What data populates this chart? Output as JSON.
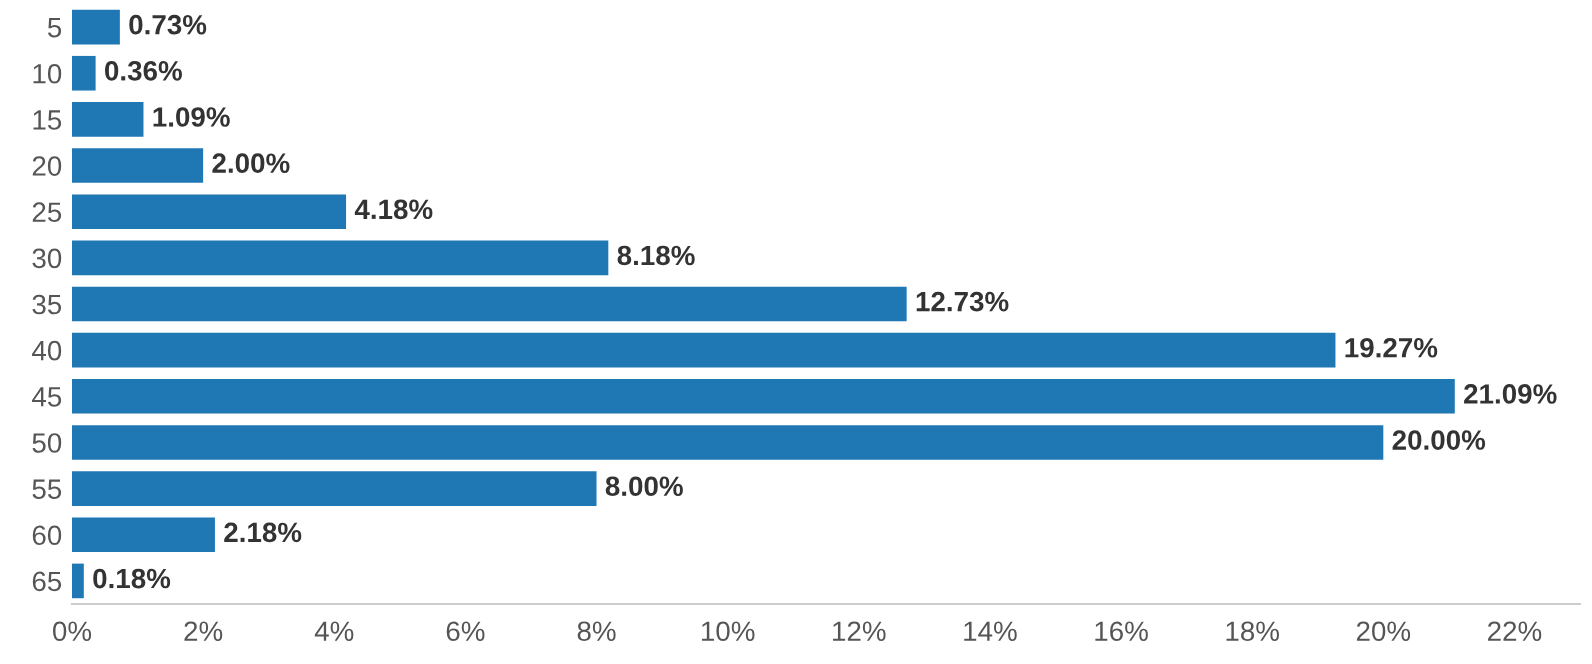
{
  "chart_data": {
    "type": "bar",
    "orientation": "horizontal",
    "color": "#1f77b4",
    "categories": [
      "5",
      "10",
      "15",
      "20",
      "25",
      "30",
      "35",
      "40",
      "45",
      "50",
      "55",
      "60",
      "65"
    ],
    "values": [
      0.73,
      0.36,
      1.09,
      2.0,
      4.18,
      8.18,
      12.73,
      19.27,
      21.09,
      20.0,
      8.0,
      2.18,
      0.18
    ],
    "value_labels": [
      "0.73%",
      "0.36%",
      "1.09%",
      "2.00%",
      "4.18%",
      "8.18%",
      "12.73%",
      "19.27%",
      "21.09%",
      "20.00%",
      "8.00%",
      "2.18%",
      "0.18%"
    ],
    "xlim": [
      0,
      23
    ],
    "xticks": [
      {
        "value": 0,
        "label": "0%"
      },
      {
        "value": 2,
        "label": "2%"
      },
      {
        "value": 4,
        "label": "4%"
      },
      {
        "value": 6,
        "label": "6%"
      },
      {
        "value": 8,
        "label": "8%"
      },
      {
        "value": 10,
        "label": "10%"
      },
      {
        "value": 12,
        "label": "12%"
      },
      {
        "value": 14,
        "label": "14%"
      },
      {
        "value": 16,
        "label": "16%"
      },
      {
        "value": 18,
        "label": "18%"
      },
      {
        "value": 20,
        "label": "20%"
      },
      {
        "value": 22,
        "label": "22%"
      }
    ],
    "grid": false,
    "legend": false
  }
}
